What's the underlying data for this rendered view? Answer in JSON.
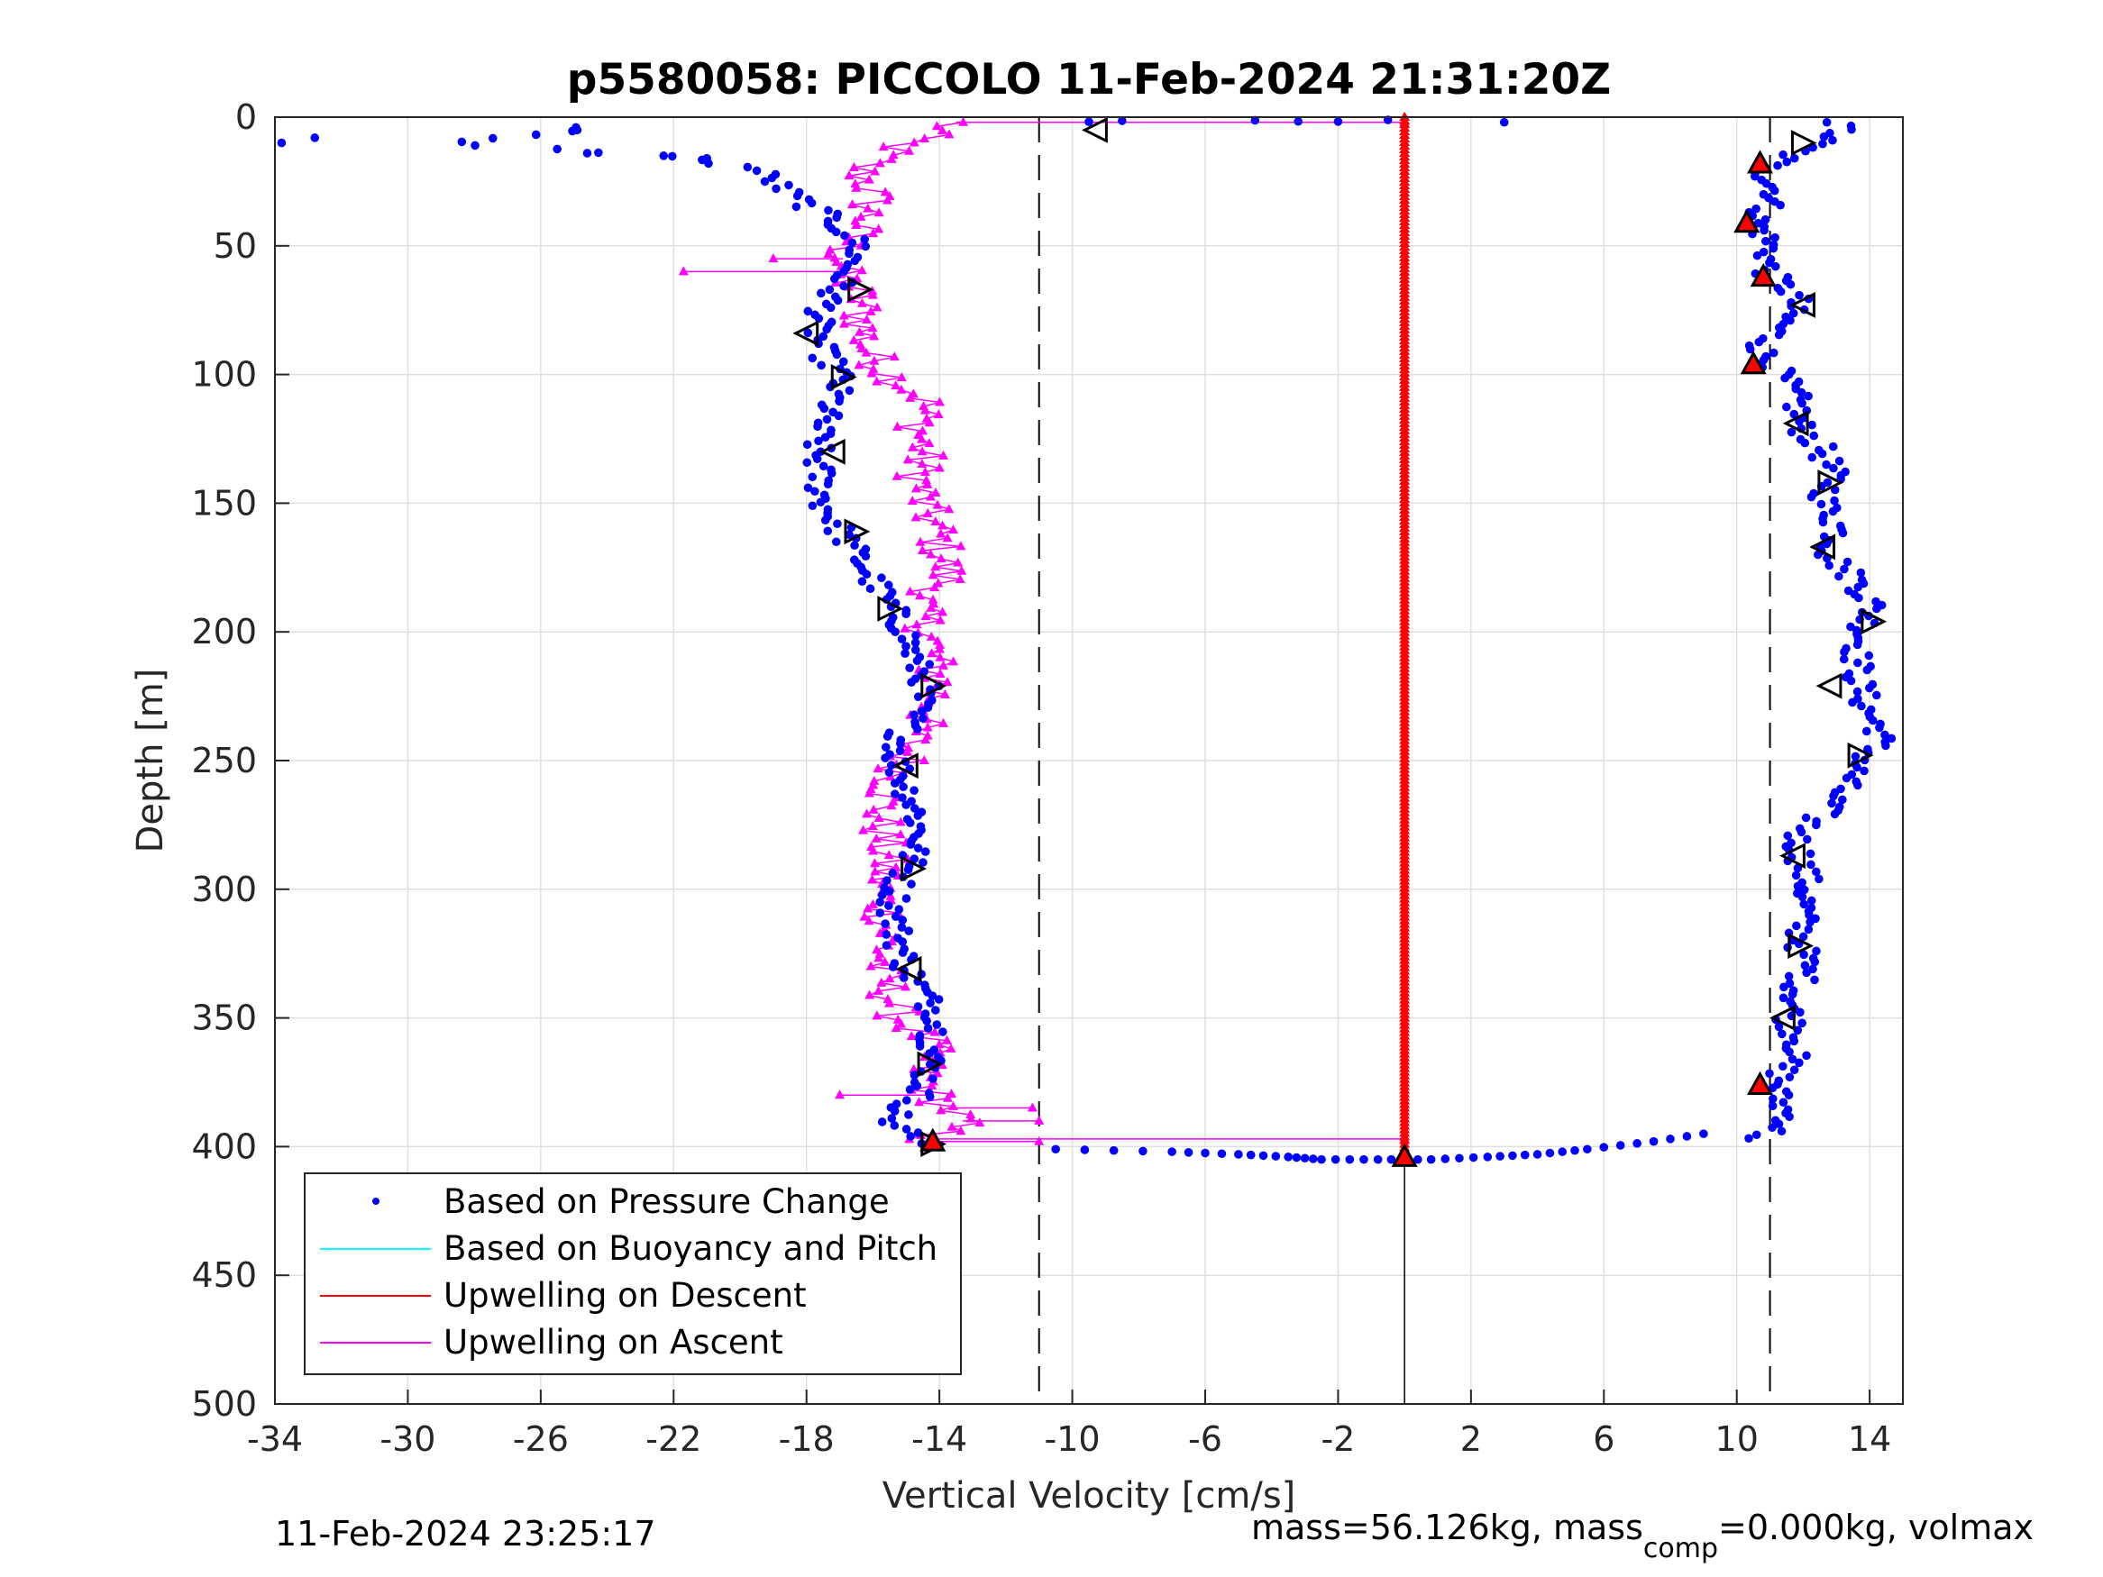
{
  "chart_data": {
    "type": "scatter",
    "title": "p5580058: PICCOLO 11-Feb-2024 21:31:20Z",
    "xlabel": "Vertical Velocity [cm/s]",
    "ylabel": "Depth [m]",
    "xlim": [
      -34,
      15
    ],
    "ylim": [
      0,
      500
    ],
    "y_reversed": true,
    "grid": true,
    "x_ticks": [
      -34,
      -30,
      -26,
      -22,
      -18,
      -14,
      -10,
      -6,
      -2,
      2,
      6,
      10,
      14
    ],
    "x_tick_labels": [
      "-34",
      "-30",
      "-26",
      "-22",
      "-18",
      "-14",
      "-10",
      "-6",
      "-2",
      "2",
      "6",
      "10",
      "14"
    ],
    "y_ticks": [
      0,
      50,
      100,
      150,
      200,
      250,
      300,
      350,
      400,
      450,
      500
    ],
    "y_tick_labels": [
      "0",
      "50",
      "100",
      "150",
      "200",
      "250",
      "300",
      "350",
      "400",
      "450",
      "500"
    ],
    "reference_lines": {
      "dashed_x": [
        -11,
        11
      ],
      "solid_x": 0
    },
    "legend": {
      "placement": "bottom-left",
      "entries": [
        {
          "label": "Based on Pressure Change",
          "color": "#0000ff",
          "marker": "dot"
        },
        {
          "label": "Based on Buoyancy and Pitch",
          "color": "#00ffff",
          "marker": "line"
        },
        {
          "label": "Upwelling on Descent",
          "color": "#ff0000",
          "marker": "line"
        },
        {
          "label": "Upwelling on Ascent",
          "color": "#ff00ff",
          "marker": "line"
        }
      ]
    },
    "series": [
      {
        "name": "Based on Pressure Change",
        "color": "#0000ff",
        "descent": {
          "depth": [
            0,
            5,
            10,
            20,
            30,
            40,
            50,
            60,
            70,
            80,
            90,
            100,
            110,
            120,
            130,
            140,
            150,
            160,
            170,
            180,
            190,
            200,
            210,
            220,
            230,
            240,
            250,
            260,
            270,
            280,
            290,
            300,
            310,
            320,
            330,
            340,
            350,
            360,
            370,
            380,
            390,
            400
          ],
          "velocity": [
            12.8,
            13.2,
            12.4,
            10.8,
            11.2,
            10.6,
            11.0,
            10.9,
            11.8,
            11.4,
            10.7,
            11.3,
            11.8,
            11.9,
            12.6,
            12.9,
            12.6,
            13.1,
            12.8,
            13.6,
            14.1,
            13.8,
            13.6,
            13.7,
            13.9,
            14.4,
            13.8,
            13.2,
            12.6,
            11.8,
            12.0,
            12.1,
            12.0,
            11.9,
            12.1,
            11.8,
            11.6,
            11.9,
            11.4,
            11.2,
            11.6,
            10.2
          ]
        },
        "ascent": {
          "depth": [
            400,
            390,
            380,
            370,
            360,
            350,
            340,
            330,
            320,
            310,
            300,
            290,
            280,
            270,
            260,
            250,
            240,
            230,
            220,
            210,
            200,
            190,
            180,
            170,
            160,
            150,
            140,
            130,
            120,
            110,
            100,
            90,
            80,
            70,
            60,
            50,
            40,
            30,
            20,
            15,
            10,
            5
          ],
          "velocity": [
            -14.3,
            -15.5,
            -14.6,
            -14.3,
            -14.2,
            -14.0,
            -14.5,
            -15.0,
            -15.2,
            -15.4,
            -15.3,
            -14.9,
            -14.6,
            -14.7,
            -15.0,
            -15.3,
            -15.1,
            -14.7,
            -14.4,
            -14.8,
            -15.0,
            -15.5,
            -16.0,
            -16.5,
            -17.0,
            -17.5,
            -17.6,
            -17.7,
            -17.6,
            -17.2,
            -17.0,
            -17.6,
            -17.7,
            -17.3,
            -16.8,
            -16.4,
            -17.2,
            -18.5,
            -19.5,
            -22.3,
            -29.0,
            -25.0
          ]
        },
        "surface_spikes": [
          {
            "depth": 10,
            "velocity": -33.8
          },
          {
            "depth": 8,
            "velocity": -32.8
          },
          {
            "depth": 5,
            "velocity": -24.9
          },
          {
            "depth": 14,
            "velocity": -24.6
          },
          {
            "depth": 15,
            "velocity": -22.3
          },
          {
            "depth": 16,
            "velocity": -21.0
          }
        ],
        "bottom_turn": {
          "depth": [
            401,
            402,
            403,
            404,
            405,
            405,
            405,
            404,
            403,
            401,
            398,
            394
          ],
          "velocity": [
            -10.5,
            -7.0,
            -5.0,
            -3.5,
            -2.5,
            -0.8,
            0.8,
            2.5,
            4.0,
            5.5,
            7.5,
            9.5
          ]
        }
      },
      {
        "name": "Upwelling on Ascent",
        "color": "#ff00ff",
        "depth": [
          398,
          390,
          380,
          370,
          360,
          350,
          340,
          330,
          320,
          310,
          300,
          290,
          280,
          270,
          260,
          250,
          240,
          230,
          220,
          210,
          200,
          190,
          180,
          170,
          160,
          150,
          140,
          130,
          120,
          110,
          100,
          90,
          80,
          70,
          60,
          50,
          40,
          30,
          20,
          10,
          2
        ],
        "velocity": [
          -14.5,
          -13.3,
          -14.2,
          -14.5,
          -14.3,
          -15.2,
          -15.5,
          -15.8,
          -15.6,
          -15.6,
          -15.8,
          -15.6,
          -15.7,
          -15.8,
          -15.5,
          -15.0,
          -14.8,
          -14.2,
          -14.0,
          -14.2,
          -14.3,
          -14.7,
          -13.8,
          -13.9,
          -14.1,
          -14.5,
          -14.6,
          -14.5,
          -14.6,
          -14.4,
          -15.5,
          -16.2,
          -16.3,
          -16.4,
          -17.0,
          -16.8,
          -16.2,
          -16.0,
          -16.4,
          -15.0,
          -13.5
        ],
        "spikes": [
          {
            "depth": 398,
            "velocity": -11.0
          },
          {
            "depth": 397,
            "velocity": 0.0
          },
          {
            "depth": 390,
            "velocity": -11.0
          },
          {
            "depth": 385,
            "velocity": -11.2
          },
          {
            "depth": 380,
            "velocity": -17.0
          },
          {
            "depth": 60,
            "velocity": -21.7
          },
          {
            "depth": 55,
            "velocity": -19.0
          },
          {
            "depth": 2,
            "velocity": 0.0
          }
        ]
      },
      {
        "name": "Upwelling on Descent",
        "color": "#ff0000",
        "depth_range": [
          0,
          405
        ],
        "velocity": 0.0
      }
    ],
    "markers": {
      "left_open": [
        {
          "depth": 5,
          "velocity": -9.3
        },
        {
          "depth": 84,
          "velocity": -18.0
        },
        {
          "depth": 130,
          "velocity": -17.2
        },
        {
          "depth": 252,
          "velocity": -15.0
        },
        {
          "depth": 331,
          "velocity": -14.9
        },
        {
          "depth": 73,
          "velocity": 12.0
        },
        {
          "depth": 119,
          "velocity": 11.8
        },
        {
          "depth": 167,
          "velocity": 12.6
        },
        {
          "depth": 221,
          "velocity": 12.8
        },
        {
          "depth": 287,
          "velocity": 11.7
        },
        {
          "depth": 350,
          "velocity": 11.4
        }
      ],
      "right_open": [
        {
          "depth": 67,
          "velocity": -16.4
        },
        {
          "depth": 101,
          "velocity": -16.9
        },
        {
          "depth": 161,
          "velocity": -16.5
        },
        {
          "depth": 191,
          "velocity": -15.5
        },
        {
          "depth": 221,
          "velocity": -14.2
        },
        {
          "depth": 292,
          "velocity": -14.8
        },
        {
          "depth": 368,
          "velocity": -14.3
        },
        {
          "depth": 399,
          "velocity": -14.2
        },
        {
          "depth": 10,
          "velocity": 12.0
        },
        {
          "depth": 142,
          "velocity": 12.8
        },
        {
          "depth": 196,
          "velocity": 14.1
        },
        {
          "depth": 248,
          "velocity": 13.7
        },
        {
          "depth": 322,
          "velocity": 11.9
        }
      ],
      "up_filled": [
        {
          "depth": 18,
          "velocity": 10.7
        },
        {
          "depth": 41,
          "velocity": 10.3
        },
        {
          "depth": 62,
          "velocity": 10.8
        },
        {
          "depth": 96,
          "velocity": 10.5
        },
        {
          "depth": 376,
          "velocity": 10.7
        },
        {
          "depth": 398,
          "velocity": -14.2
        },
        {
          "depth": 404,
          "velocity": 0.0
        }
      ]
    }
  },
  "footer": {
    "timestamp": "11-Feb-2024 23:25:17",
    "mass_text": "mass=56.126kg, mass",
    "mass_sub": "comp",
    "mass_text_2": "=0.000kg, volmax"
  }
}
